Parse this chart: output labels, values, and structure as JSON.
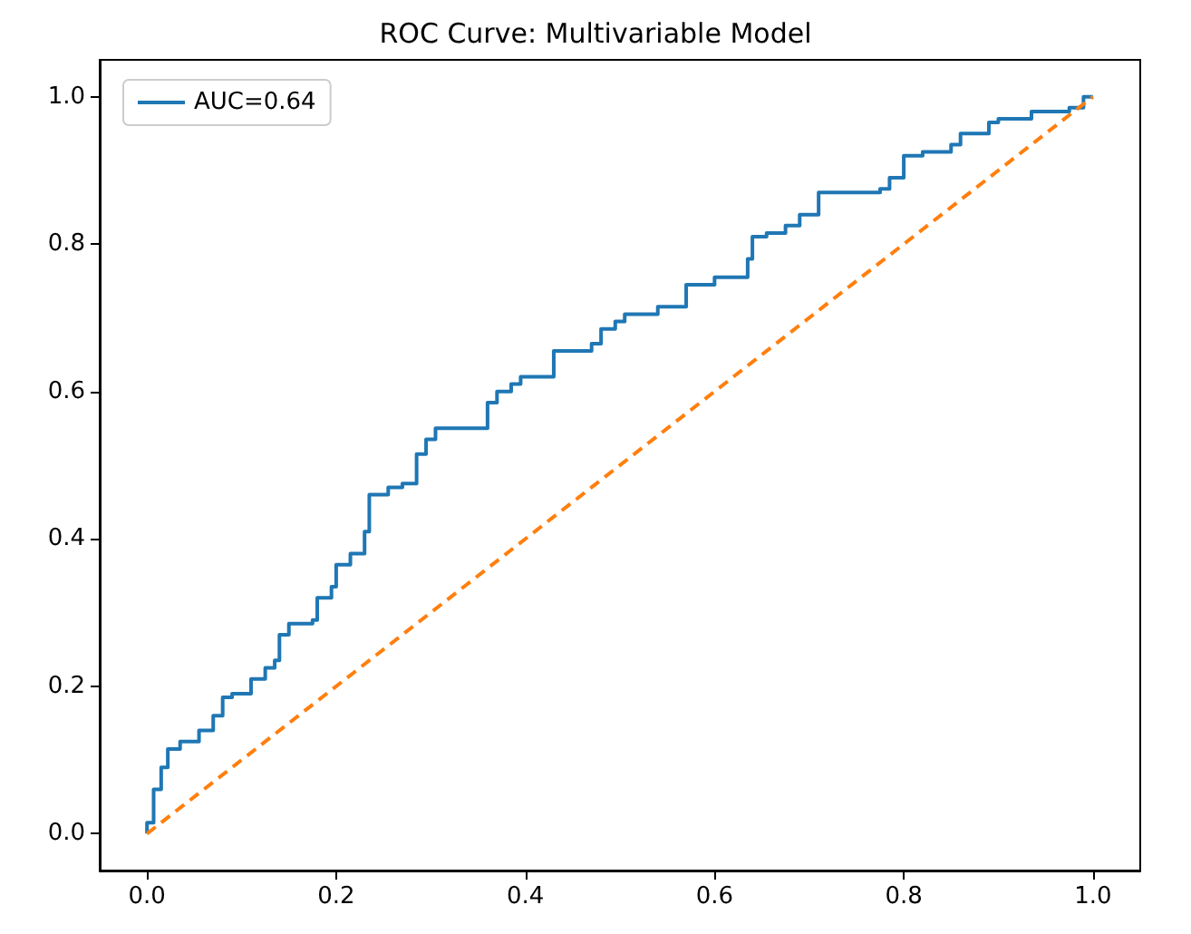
{
  "chart_data": {
    "type": "line",
    "title": "ROC Curve: Multivariable Model",
    "xlim": [
      -0.05,
      1.05
    ],
    "ylim": [
      -0.05,
      1.05
    ],
    "xticks": [
      {
        "value": 0,
        "label": "0.0"
      },
      0.2,
      0.4,
      0.6,
      0.8,
      {
        "value": 1,
        "label": "1.0"
      }
    ],
    "yticks": [
      {
        "value": 0,
        "label": "0.0"
      },
      0.2,
      0.4,
      0.6,
      0.8,
      {
        "value": 1,
        "label": "1.0"
      }
    ],
    "grid": false,
    "legend": "top left",
    "marker": "none",
    "series": [
      {
        "name": "AUC=0.64",
        "type": "step",
        "color": "#1f77b4",
        "line_style": "solid",
        "x": [
          0,
          0,
          0.007,
          0.015,
          0.022,
          0.035,
          0.055,
          0.07,
          0.08,
          0.09,
          0.11,
          0.125,
          0.135,
          0.14,
          0.15,
          0.175,
          0.18,
          0.195,
          0.2,
          0.215,
          0.23,
          0.235,
          0.255,
          0.27,
          0.285,
          0.295,
          0.305,
          0.35,
          0.36,
          0.37,
          0.385,
          0.395,
          0.42,
          0.43,
          0.47,
          0.48,
          0.495,
          0.505,
          0.54,
          0.57,
          0.6,
          0.635,
          0.64,
          0.655,
          0.675,
          0.69,
          0.71,
          0.775,
          0.785,
          0.8,
          0.82,
          0.85,
          0.86,
          0.89,
          0.9,
          0.935,
          0.975,
          0.99,
          1
        ],
        "values": [
          0,
          0.015,
          0.06,
          0.09,
          0.115,
          0.125,
          0.14,
          0.16,
          0.185,
          0.19,
          0.21,
          0.225,
          0.235,
          0.27,
          0.285,
          0.29,
          0.32,
          0.335,
          0.365,
          0.38,
          0.41,
          0.46,
          0.47,
          0.475,
          0.515,
          0.535,
          0.55,
          0.55,
          0.585,
          0.6,
          0.61,
          0.62,
          0.62,
          0.655,
          0.665,
          0.685,
          0.695,
          0.705,
          0.715,
          0.745,
          0.755,
          0.78,
          0.81,
          0.815,
          0.825,
          0.84,
          0.87,
          0.875,
          0.89,
          0.92,
          0.925,
          0.935,
          0.95,
          0.965,
          0.97,
          0.98,
          0.985,
          1,
          1
        ]
      },
      {
        "type": "line",
        "color": "#ff7f0e",
        "line_style": "dashed",
        "x": [
          0,
          1
        ],
        "values": [
          0,
          1
        ]
      }
    ]
  }
}
